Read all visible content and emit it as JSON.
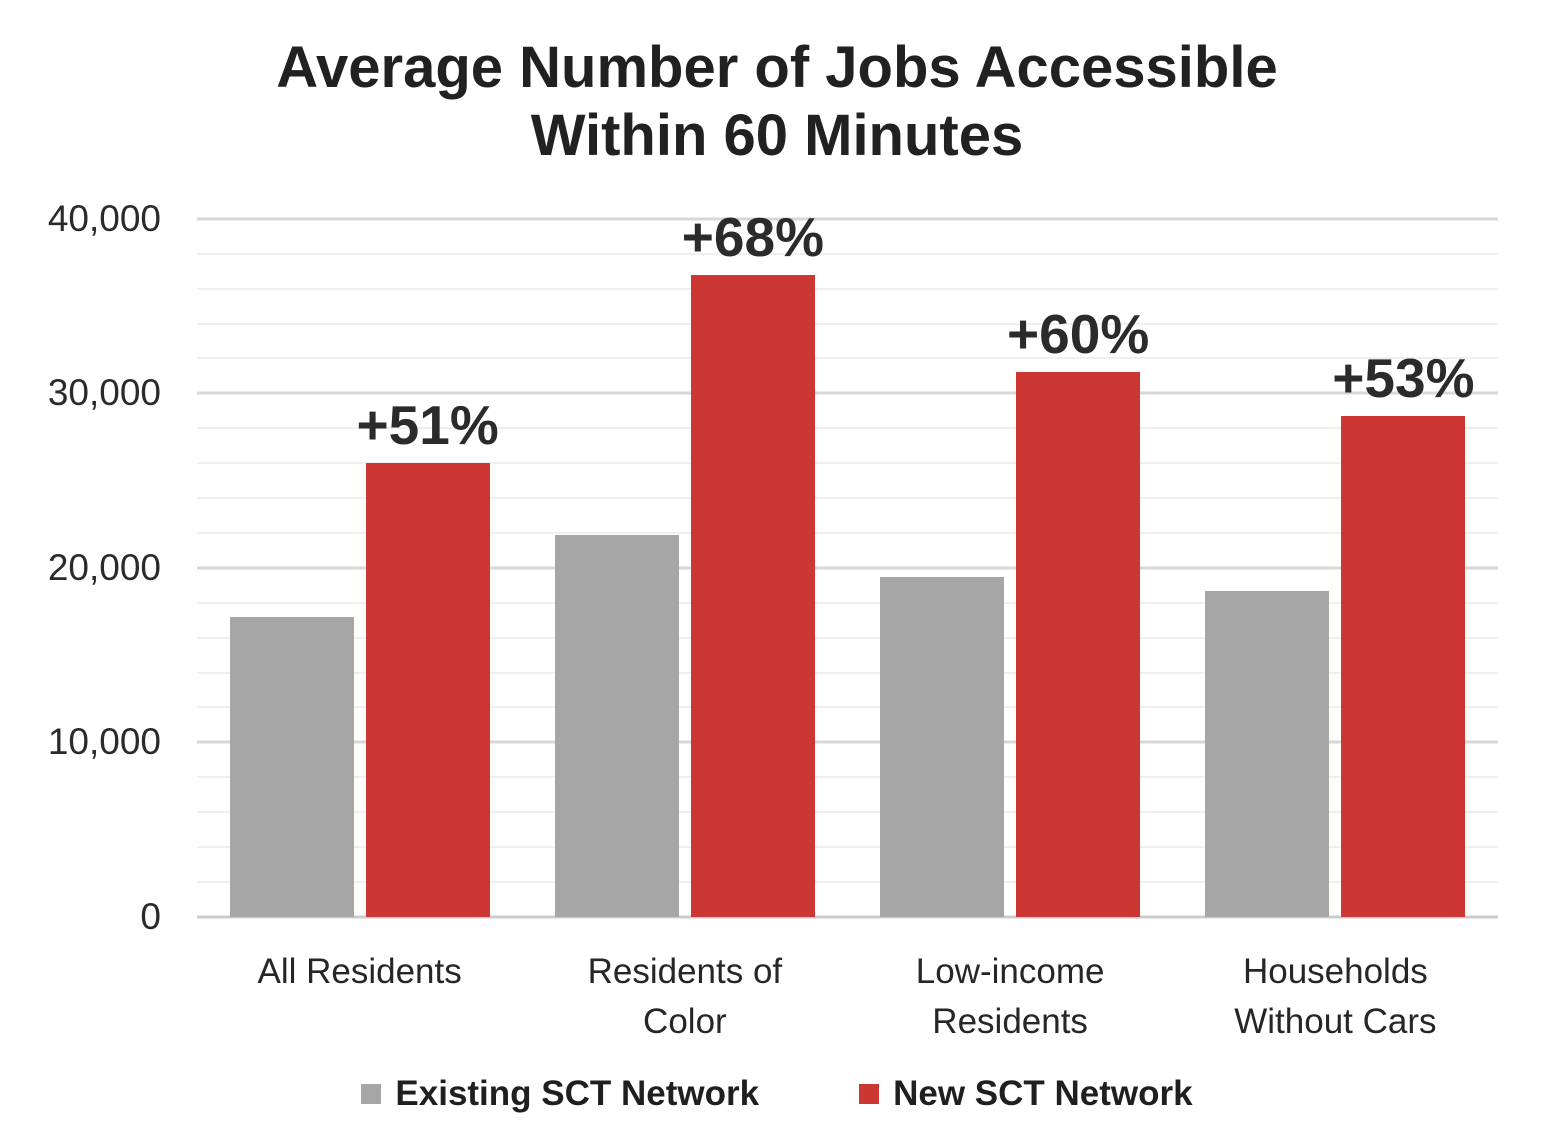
{
  "chart": {
    "title_lines": [
      "Average Number of Jobs Accessible",
      "Within 60 Minutes"
    ]
  },
  "chart_data": {
    "type": "bar",
    "title": "Average Number of Jobs Accessible Within 60 Minutes",
    "categories": [
      "All Residents",
      "Residents of Color",
      "Low-income Residents",
      "Households Without Cars"
    ],
    "category_label_lines": [
      [
        "All Residents"
      ],
      [
        "Residents of",
        "Color"
      ],
      [
        "Low-income",
        "Residents"
      ],
      [
        "Households",
        "Without Cars"
      ]
    ],
    "series": [
      {
        "name": "Existing SCT Network",
        "color": "#a6a6a6",
        "values": [
          17200,
          21900,
          19500,
          18700
        ]
      },
      {
        "name": "New SCT Network",
        "color": "#cc3733",
        "values": [
          26000,
          36800,
          31200,
          28700
        ]
      }
    ],
    "annotations": [
      "+51%",
      "+68%",
      "+60%",
      "+53%"
    ],
    "xlabel": "",
    "ylabel": "",
    "ylim": [
      0,
      40000
    ],
    "y_major_step": 10000,
    "y_minor_step": 2000,
    "y_tick_labels": [
      "0",
      "10,000",
      "20,000",
      "30,000",
      "40,000"
    ],
    "grid": "horizontal-minor-and-major",
    "legend_position": "bottom"
  },
  "colors": {
    "title_text": "#212121",
    "axis_text": "#2a2a2a",
    "annotation_text": "#2b2b2b",
    "gridline_minor": "#efefef",
    "gridline_major": "#d7d7d7",
    "background": "#ffffff"
  }
}
